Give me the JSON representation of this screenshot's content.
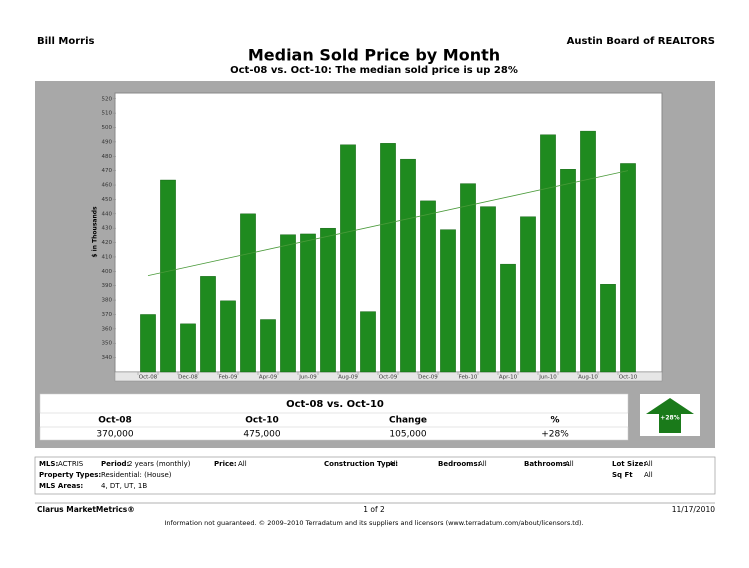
{
  "header": {
    "agent": "Bill Morris",
    "board": "Austin Board of REALTORS"
  },
  "chart_data": {
    "type": "bar",
    "title": "Median Sold Price by Month",
    "subtitle": "Oct-08 vs. Oct-10:  The median sold price is up 28%",
    "y_label": "$ in Thousands",
    "categories": [
      "Oct-08",
      null,
      "Dec-08",
      null,
      "Feb-09",
      null,
      "Apr-09",
      null,
      "Jun-09",
      null,
      "Aug-09",
      null,
      "Oct-09",
      null,
      "Dec-09",
      null,
      "Feb-10",
      null,
      "Apr-10",
      null,
      "Jun-10",
      null,
      "Aug-10",
      null,
      "Oct-10"
    ],
    "values": [
      370,
      463.5,
      363.5,
      396.5,
      379.5,
      440,
      366.5,
      425.5,
      426,
      430,
      488,
      372,
      489,
      478,
      449,
      429,
      461,
      445,
      405,
      438,
      495,
      471,
      497.5,
      391,
      475
    ],
    "color": "#1f8a1f",
    "trend_values": [
      397,
      470
    ],
    "trend_color": "#4a9a3a",
    "ylim": [
      330,
      524
    ],
    "yticks": [
      340,
      350,
      360,
      370,
      380,
      390,
      400,
      410,
      420,
      430,
      440,
      450,
      460,
      470,
      480,
      490,
      500,
      510,
      520
    ],
    "grid": false
  },
  "summary": {
    "title": "Oct-08 vs. Oct-10",
    "headers": [
      "Oct-08",
      "Oct-10",
      "Change",
      "%"
    ],
    "values": [
      "370,000",
      "475,000",
      "105,000",
      "+28%"
    ],
    "arrow_label": "+28%"
  },
  "criteria": {
    "mls_label": "MLS:",
    "mls": "ACTRIS",
    "period_label": "Period:",
    "period": "2 years (monthly)",
    "price_label": "Price:",
    "price": "All",
    "construction_label": "Construction Type:",
    "construction": "All",
    "bedrooms_label": "Bedrooms:",
    "bedrooms": "All",
    "bathrooms_label": "Bathrooms:",
    "bathrooms": "All",
    "lot_label": "Lot Size:",
    "lot": "All",
    "property_label": "Property Types:",
    "property": "Residential: (House)",
    "sqft_label": "Sq Ft",
    "sqft": "All",
    "areas_label": "MLS Areas:",
    "areas": "4, DT, UT, 1B"
  },
  "footer": {
    "brand": "Clarus MarketMetrics®",
    "page": "1 of 2",
    "date": "11/17/2010",
    "disclaimer": "Information not guaranteed.  © 2009–2010 Terradatum and its suppliers and licensors (www.terradatum.com/about/licensors.td)."
  }
}
